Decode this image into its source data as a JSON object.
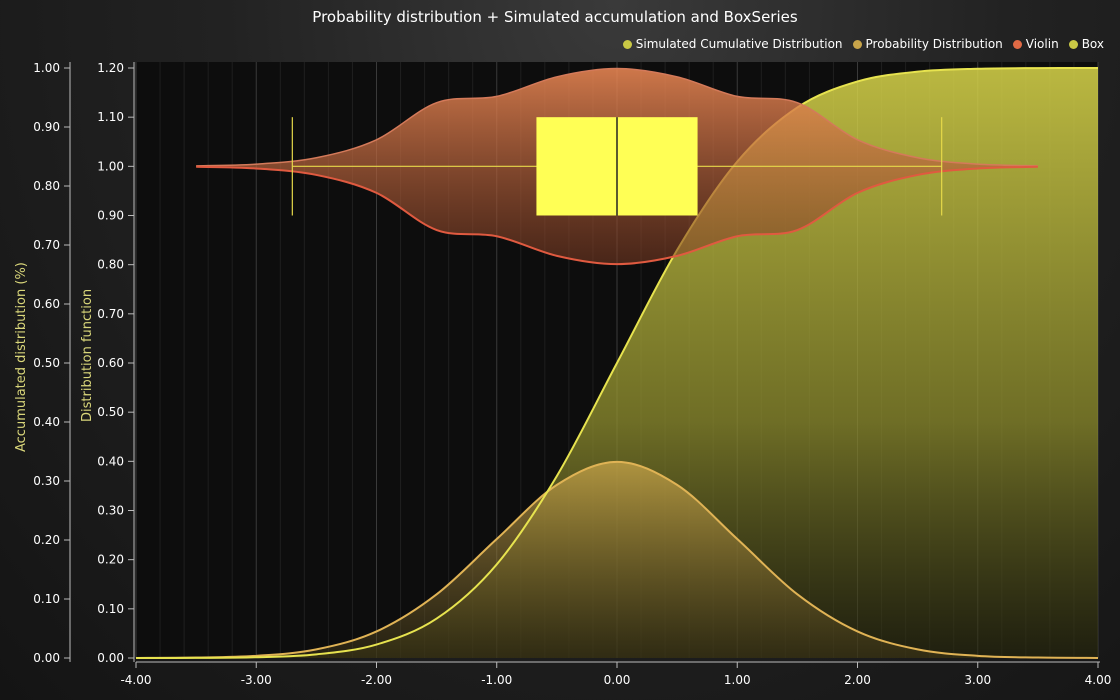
{
  "chart_data": {
    "title": "Probability distribution + Simulated accumulation and BoxSeries",
    "type": "line",
    "xlim": [
      -4.0,
      4.0
    ],
    "x_ticks": [
      "-4.00",
      "-3.00",
      "-2.00",
      "-1.00",
      "0.00",
      "1.00",
      "2.00",
      "3.00",
      "4.00"
    ],
    "y_left": {
      "label": "Accumulated distribution (%)",
      "ylim": [
        0.0,
        1.0
      ],
      "ticks": [
        "0.00",
        "0.10",
        "0.20",
        "0.30",
        "0.40",
        "0.50",
        "0.60",
        "0.70",
        "0.80",
        "0.90",
        "1.00"
      ]
    },
    "y_dist": {
      "label": "Distribution function",
      "ylim": [
        0.0,
        1.2
      ],
      "ticks": [
        "0.00",
        "0.10",
        "0.20",
        "0.30",
        "0.40",
        "0.50",
        "0.60",
        "0.70",
        "0.80",
        "0.90",
        "1.00",
        "1.10",
        "1.20"
      ],
      "extra_ticks": [
        "0.80",
        "0.90",
        "1.00",
        "1.10"
      ]
    },
    "legend": {
      "placement": "top-right",
      "items": [
        {
          "name": "Simulated Cumulative Distribution",
          "color": "#c9c845"
        },
        {
          "name": "Probability Distribution",
          "color": "#c7a44a"
        },
        {
          "name": "Violin",
          "color": "#e06a45"
        },
        {
          "name": "Box",
          "color": "#c9c845"
        }
      ]
    },
    "series": [
      {
        "name": "Simulated Cumulative Distribution",
        "color": "#e7e34f",
        "x": [
          -4.0,
          -3.5,
          -3.0,
          -2.5,
          -2.0,
          -1.5,
          -1.0,
          -0.5,
          0.0,
          0.5,
          1.0,
          1.5,
          2.0,
          2.5,
          3.0,
          3.5,
          4.0
        ],
        "values": [
          0.0,
          0.0002,
          0.0013,
          0.0062,
          0.0228,
          0.0668,
          0.1587,
          0.3085,
          0.5,
          0.6915,
          0.8413,
          0.9332,
          0.9772,
          0.9938,
          0.9987,
          0.9998,
          1.0
        ]
      },
      {
        "name": "Probability Distribution",
        "color": "#e0b355",
        "x": [
          -4.0,
          -3.5,
          -3.0,
          -2.5,
          -2.0,
          -1.5,
          -1.0,
          -0.5,
          0.0,
          0.5,
          1.0,
          1.5,
          2.0,
          2.5,
          3.0,
          3.5,
          4.0
        ],
        "values": [
          0.0001,
          0.0009,
          0.0044,
          0.0175,
          0.054,
          0.1295,
          0.242,
          0.3521,
          0.3989,
          0.3521,
          0.242,
          0.1295,
          0.054,
          0.0175,
          0.0044,
          0.0009,
          0.0001
        ]
      },
      {
        "name": "Violin",
        "color": "#e05a40",
        "center": 1.0,
        "x": [
          -3.5,
          -3.0,
          -2.5,
          -2.0,
          -1.5,
          -1.0,
          -0.5,
          0.0,
          0.5,
          1.0,
          1.5,
          2.0,
          2.5,
          3.0,
          3.5
        ],
        "half_width": [
          0.0009,
          0.0044,
          0.0175,
          0.054,
          0.1295,
          0.1422,
          0.1821,
          0.1989,
          0.1821,
          0.1422,
          0.1295,
          0.054,
          0.0175,
          0.0044,
          0.0009
        ]
      },
      {
        "name": "Box",
        "color": "#ffff55",
        "center": 1.0,
        "whisker_low": -2.7,
        "q1": -0.67,
        "median": 0.0,
        "q3": 0.67,
        "whisker_high": 2.7,
        "box_bottom": 0.9,
        "box_top": 1.1
      }
    ],
    "grid": true
  }
}
